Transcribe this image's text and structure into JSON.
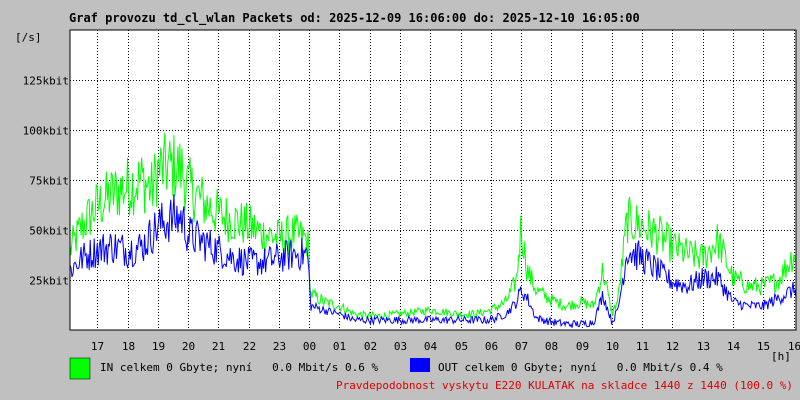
{
  "colors": {
    "background": "#c0c0c0",
    "plot_bg": "#ffffff",
    "in": "#00ff00",
    "out": "#0000ff",
    "grid": "#000000",
    "note": "#e00000"
  },
  "chart_data": {
    "type": "line",
    "title": "Graf provozu td_cl_wlan Packets od: 2025-12-09 16:06:00 do: 2025-12-10 16:05:00",
    "ylabel": "[/s]",
    "xlabel": "[h]",
    "ylim": [
      0,
      150
    ],
    "y_ticks": [
      {
        "value": 25,
        "label": "25kbit"
      },
      {
        "value": 50,
        "label": "50kbit"
      },
      {
        "value": 75,
        "label": "75kbit"
      },
      {
        "value": 100,
        "label": "100kbit"
      },
      {
        "value": 125,
        "label": "125kbit"
      }
    ],
    "xlim": [
      16.1,
      40.08
    ],
    "x_ticks": [
      {
        "value": 17,
        "label": "17"
      },
      {
        "value": 18,
        "label": "18"
      },
      {
        "value": 19,
        "label": "19"
      },
      {
        "value": 20,
        "label": "20"
      },
      {
        "value": 21,
        "label": "21"
      },
      {
        "value": 22,
        "label": "22"
      },
      {
        "value": 23,
        "label": "23"
      },
      {
        "value": 24,
        "label": "00"
      },
      {
        "value": 25,
        "label": "01"
      },
      {
        "value": 26,
        "label": "02"
      },
      {
        "value": 27,
        "label": "03"
      },
      {
        "value": 28,
        "label": "04"
      },
      {
        "value": 29,
        "label": "05"
      },
      {
        "value": 30,
        "label": "06"
      },
      {
        "value": 31,
        "label": "07"
      },
      {
        "value": 32,
        "label": "08"
      },
      {
        "value": 33,
        "label": "09"
      },
      {
        "value": 34,
        "label": "10"
      },
      {
        "value": 35,
        "label": "11"
      },
      {
        "value": 36,
        "label": "12"
      },
      {
        "value": 37,
        "label": "13"
      },
      {
        "value": 38,
        "label": "14"
      },
      {
        "value": 39,
        "label": "15"
      },
      {
        "value": 40,
        "label": "16"
      }
    ],
    "grid": true,
    "series": [
      {
        "name": "IN",
        "color": "#00ff00",
        "x": [
          16.1,
          16.5,
          17.0,
          17.5,
          18.0,
          18.5,
          18.8,
          19.0,
          19.5,
          19.8,
          20.0,
          20.5,
          21.0,
          21.5,
          22.0,
          22.5,
          23.0,
          23.5,
          23.95,
          24.05,
          24.5,
          25.0,
          25.5,
          26.0,
          26.5,
          27.0,
          27.5,
          28.0,
          28.5,
          29.0,
          29.5,
          30.0,
          30.5,
          30.85,
          31.0,
          31.2,
          31.5,
          32.0,
          32.5,
          33.0,
          33.4,
          33.7,
          34.0,
          34.2,
          34.5,
          35.0,
          35.5,
          36.0,
          36.5,
          37.0,
          37.5,
          38.0,
          38.5,
          39.0,
          39.5,
          40.0
        ],
        "values": [
          40,
          52,
          62,
          68,
          72,
          75,
          70,
          80,
          82,
          80,
          72,
          64,
          58,
          55,
          52,
          48,
          46,
          48,
          45,
          18,
          14,
          12,
          8,
          7,
          7,
          8,
          9,
          10,
          9,
          8,
          8,
          10,
          14,
          25,
          52,
          30,
          20,
          15,
          12,
          14,
          12,
          30,
          8,
          15,
          55,
          52,
          48,
          42,
          38,
          36,
          45,
          26,
          22,
          22,
          25,
          38
        ]
      },
      {
        "name": "OUT",
        "color": "#0000ff",
        "x": [
          16.1,
          16.5,
          17.0,
          17.5,
          18.0,
          18.5,
          19.0,
          19.5,
          19.8,
          20.0,
          20.5,
          21.0,
          21.5,
          22.0,
          22.5,
          23.0,
          23.5,
          23.95,
          24.05,
          24.5,
          25.0,
          25.5,
          26.0,
          26.5,
          27.0,
          27.5,
          28.0,
          28.5,
          29.0,
          29.5,
          30.0,
          30.5,
          30.85,
          31.0,
          31.2,
          31.5,
          32.0,
          32.5,
          33.0,
          33.4,
          33.7,
          34.0,
          34.2,
          34.5,
          35.0,
          35.5,
          36.0,
          36.5,
          37.0,
          37.5,
          38.0,
          38.5,
          39.0,
          39.5,
          40.0
        ],
        "values": [
          30,
          36,
          40,
          42,
          40,
          42,
          52,
          56,
          56,
          48,
          44,
          40,
          36,
          34,
          34,
          36,
          38,
          38,
          12,
          10,
          8,
          5,
          5,
          5,
          5,
          5,
          5,
          5,
          5,
          5,
          5,
          8,
          14,
          20,
          16,
          6,
          4,
          3,
          3,
          4,
          18,
          4,
          10,
          40,
          36,
          30,
          24,
          22,
          26,
          26,
          14,
          12,
          12,
          16,
          20
        ]
      }
    ],
    "legend": [
      {
        "series": "IN",
        "text": "IN celkem 0 Gbyte; nyní   0.0 Mbit/s 0.6 %"
      },
      {
        "series": "OUT",
        "text": "OUT celkem 0 Gbyte; nyní   0.0 Mbit/s 0.4 %"
      }
    ],
    "note": "Pravdepodobnost vyskytu E220 KULATAK na skladce 1440 z 1440 (100.0 %)"
  }
}
